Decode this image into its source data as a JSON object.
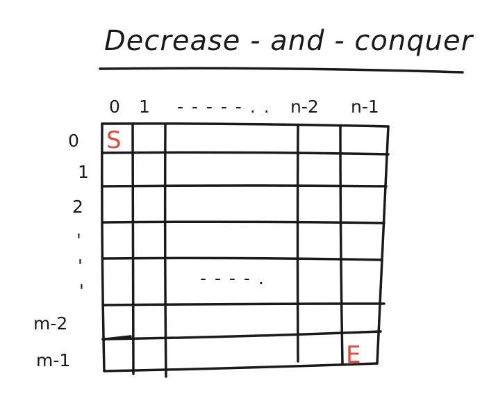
{
  "title": "Decrease - and - conquer",
  "columns": {
    "labels": [
      "0",
      "1",
      "n-2",
      "n-1"
    ],
    "ellipsis": "- -   - - - . ."
  },
  "rows": {
    "labels": [
      "0",
      "1",
      "2",
      "m-2",
      "m-1"
    ],
    "ellipsis_marks": [
      "'",
      "'",
      "'"
    ]
  },
  "grid": {
    "middle_ellipsis": "- - - - ."
  },
  "cells": {
    "start": "S",
    "end": "E"
  },
  "colors": {
    "ink": "#1a1a1a",
    "accent": "#e0483c",
    "background": "#ffffff"
  }
}
